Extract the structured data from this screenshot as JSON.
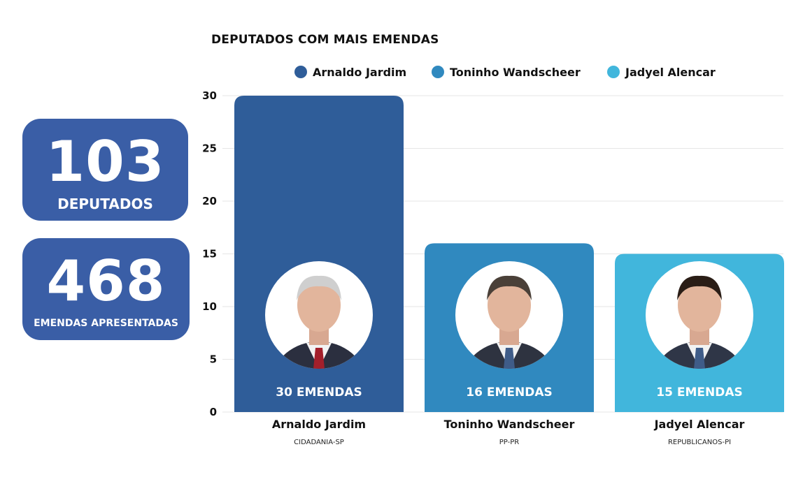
{
  "stats": {
    "deputados": {
      "number": "103",
      "label": "DEPUTADOS"
    },
    "emendas": {
      "number": "468",
      "label": "EMENDAS APRESENTADAS"
    }
  },
  "colors": {
    "card": "#3a5ea6",
    "grid": "#e6e6e6",
    "avatar_bg": "#ffffff"
  },
  "chart_data": {
    "type": "bar",
    "title": "DEPUTADOS COM MAIS EMENDAS",
    "ylim": [
      0,
      30
    ],
    "yticks": [
      "0",
      "5",
      "10",
      "15",
      "20",
      "25",
      "30"
    ],
    "grid": true,
    "legend_position": "top",
    "categories": [
      "Arnaldo Jardim",
      "Toninho Wandscheer",
      "Jadyel Alencar"
    ],
    "parties": [
      "CIDADANIA-SP",
      "PP-PR",
      "REPUBLICANOS-PI"
    ],
    "values": [
      30,
      16,
      15
    ],
    "value_labels": [
      "30 EMENDAS",
      "16 EMENDAS",
      "15 EMENDAS"
    ],
    "series_colors": [
      "#2f5d99",
      "#3089bf",
      "#41b6dc"
    ],
    "legend": [
      {
        "name": "Arnaldo Jardim",
        "color": "#2f5d99"
      },
      {
        "name": "Toninho Wandscheer",
        "color": "#3089bf"
      },
      {
        "name": "Jadyel Alencar",
        "color": "#41b6dc"
      }
    ]
  }
}
